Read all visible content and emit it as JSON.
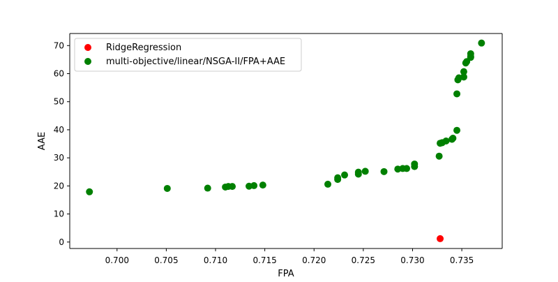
{
  "chart_data": {
    "type": "scatter",
    "title": "",
    "xlabel": "FPA",
    "ylabel": "AAE",
    "xlim": [
      0.6952,
      0.7391
    ],
    "ylim": [
      -2.3,
      74.3
    ],
    "x_ticks": [
      0.7,
      0.705,
      0.71,
      0.715,
      0.72,
      0.725,
      0.73,
      0.735
    ],
    "x_tick_labels": [
      "0.700",
      "0.705",
      "0.710",
      "0.715",
      "0.720",
      "0.725",
      "0.730",
      "0.735"
    ],
    "y_ticks": [
      0,
      10,
      20,
      30,
      40,
      50,
      60,
      70
    ],
    "y_tick_labels": [
      "0",
      "10",
      "20",
      "30",
      "40",
      "50",
      "60",
      "70"
    ],
    "grid": false,
    "legend_position": "top-left",
    "series": [
      {
        "name": "RidgeRegression",
        "color": "#ff0000",
        "points": [
          {
            "x": 0.7328,
            "y": 1.2
          }
        ]
      },
      {
        "name": "multi-objective/linear/NSGA-II/FPA+AAE",
        "color": "#008000",
        "points": [
          {
            "x": 0.6972,
            "y": 17.9
          },
          {
            "x": 0.7051,
            "y": 19.1
          },
          {
            "x": 0.7092,
            "y": 19.2
          },
          {
            "x": 0.711,
            "y": 19.6
          },
          {
            "x": 0.7113,
            "y": 19.8
          },
          {
            "x": 0.7117,
            "y": 19.8
          },
          {
            "x": 0.7134,
            "y": 19.9
          },
          {
            "x": 0.7139,
            "y": 20.1
          },
          {
            "x": 0.7148,
            "y": 20.3
          },
          {
            "x": 0.7214,
            "y": 20.6
          },
          {
            "x": 0.7224,
            "y": 22.3
          },
          {
            "x": 0.7224,
            "y": 22.9
          },
          {
            "x": 0.7231,
            "y": 23.9
          },
          {
            "x": 0.7245,
            "y": 24.2
          },
          {
            "x": 0.7245,
            "y": 24.9
          },
          {
            "x": 0.7252,
            "y": 25.2
          },
          {
            "x": 0.7271,
            "y": 25.1
          },
          {
            "x": 0.7285,
            "y": 26.0
          },
          {
            "x": 0.729,
            "y": 26.2
          },
          {
            "x": 0.7294,
            "y": 26.2
          },
          {
            "x": 0.7302,
            "y": 26.9
          },
          {
            "x": 0.7302,
            "y": 27.8
          },
          {
            "x": 0.7327,
            "y": 30.6
          },
          {
            "x": 0.7328,
            "y": 35.2
          },
          {
            "x": 0.733,
            "y": 35.4
          },
          {
            "x": 0.7334,
            "y": 36.0
          },
          {
            "x": 0.734,
            "y": 36.6
          },
          {
            "x": 0.7341,
            "y": 37.0
          },
          {
            "x": 0.7345,
            "y": 39.8
          },
          {
            "x": 0.7345,
            "y": 52.8
          },
          {
            "x": 0.7346,
            "y": 57.8
          },
          {
            "x": 0.7347,
            "y": 58.5
          },
          {
            "x": 0.7352,
            "y": 58.8
          },
          {
            "x": 0.7352,
            "y": 60.7
          },
          {
            "x": 0.7354,
            "y": 63.8
          },
          {
            "x": 0.7355,
            "y": 64.3
          },
          {
            "x": 0.7359,
            "y": 65.8
          },
          {
            "x": 0.7359,
            "y": 66.1
          },
          {
            "x": 0.7359,
            "y": 67.1
          },
          {
            "x": 0.737,
            "y": 70.9
          }
        ]
      }
    ]
  }
}
